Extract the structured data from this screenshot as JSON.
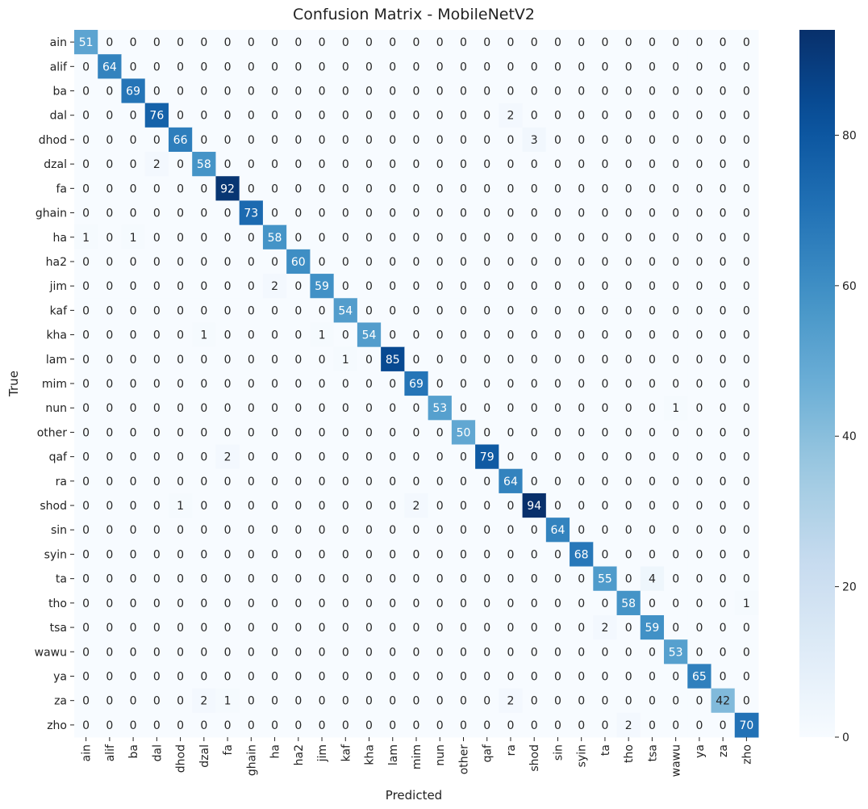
{
  "chart_data": {
    "type": "heatmap",
    "title": "Confusion Matrix - MobileNetV2",
    "xlabel": "Predicted",
    "ylabel": "True",
    "labels": [
      "ain",
      "alif",
      "ba",
      "dal",
      "dhod",
      "dzal",
      "fa",
      "ghain",
      "ha",
      "ha2",
      "jim",
      "kaf",
      "kha",
      "lam",
      "mim",
      "nun",
      "other",
      "qaf",
      "ra",
      "shod",
      "sin",
      "syin",
      "ta",
      "tho",
      "tsa",
      "wawu",
      "ya",
      "za",
      "zho"
    ],
    "matrix": [
      [
        51,
        0,
        0,
        0,
        0,
        0,
        0,
        0,
        0,
        0,
        0,
        0,
        0,
        0,
        0,
        0,
        0,
        0,
        0,
        0,
        0,
        0,
        0,
        0,
        0,
        0,
        0,
        0,
        0
      ],
      [
        0,
        64,
        0,
        0,
        0,
        0,
        0,
        0,
        0,
        0,
        0,
        0,
        0,
        0,
        0,
        0,
        0,
        0,
        0,
        0,
        0,
        0,
        0,
        0,
        0,
        0,
        0,
        0,
        0
      ],
      [
        0,
        0,
        69,
        0,
        0,
        0,
        0,
        0,
        0,
        0,
        0,
        0,
        0,
        0,
        0,
        0,
        0,
        0,
        0,
        0,
        0,
        0,
        0,
        0,
        0,
        0,
        0,
        0,
        0
      ],
      [
        0,
        0,
        0,
        76,
        0,
        0,
        0,
        0,
        0,
        0,
        0,
        0,
        0,
        0,
        0,
        0,
        0,
        0,
        2,
        0,
        0,
        0,
        0,
        0,
        0,
        0,
        0,
        0,
        0
      ],
      [
        0,
        0,
        0,
        0,
        66,
        0,
        0,
        0,
        0,
        0,
        0,
        0,
        0,
        0,
        0,
        0,
        0,
        0,
        0,
        3,
        0,
        0,
        0,
        0,
        0,
        0,
        0,
        0,
        0
      ],
      [
        0,
        0,
        0,
        2,
        0,
        58,
        0,
        0,
        0,
        0,
        0,
        0,
        0,
        0,
        0,
        0,
        0,
        0,
        0,
        0,
        0,
        0,
        0,
        0,
        0,
        0,
        0,
        0,
        0
      ],
      [
        0,
        0,
        0,
        0,
        0,
        0,
        92,
        0,
        0,
        0,
        0,
        0,
        0,
        0,
        0,
        0,
        0,
        0,
        0,
        0,
        0,
        0,
        0,
        0,
        0,
        0,
        0,
        0,
        0
      ],
      [
        0,
        0,
        0,
        0,
        0,
        0,
        0,
        73,
        0,
        0,
        0,
        0,
        0,
        0,
        0,
        0,
        0,
        0,
        0,
        0,
        0,
        0,
        0,
        0,
        0,
        0,
        0,
        0,
        0
      ],
      [
        1,
        0,
        1,
        0,
        0,
        0,
        0,
        0,
        58,
        0,
        0,
        0,
        0,
        0,
        0,
        0,
        0,
        0,
        0,
        0,
        0,
        0,
        0,
        0,
        0,
        0,
        0,
        0,
        0
      ],
      [
        0,
        0,
        0,
        0,
        0,
        0,
        0,
        0,
        0,
        60,
        0,
        0,
        0,
        0,
        0,
        0,
        0,
        0,
        0,
        0,
        0,
        0,
        0,
        0,
        0,
        0,
        0,
        0,
        0
      ],
      [
        0,
        0,
        0,
        0,
        0,
        0,
        0,
        0,
        2,
        0,
        59,
        0,
        0,
        0,
        0,
        0,
        0,
        0,
        0,
        0,
        0,
        0,
        0,
        0,
        0,
        0,
        0,
        0,
        0
      ],
      [
        0,
        0,
        0,
        0,
        0,
        0,
        0,
        0,
        0,
        0,
        0,
        54,
        0,
        0,
        0,
        0,
        0,
        0,
        0,
        0,
        0,
        0,
        0,
        0,
        0,
        0,
        0,
        0,
        0
      ],
      [
        0,
        0,
        0,
        0,
        0,
        1,
        0,
        0,
        0,
        0,
        1,
        0,
        54,
        0,
        0,
        0,
        0,
        0,
        0,
        0,
        0,
        0,
        0,
        0,
        0,
        0,
        0,
        0,
        0
      ],
      [
        0,
        0,
        0,
        0,
        0,
        0,
        0,
        0,
        0,
        0,
        0,
        1,
        0,
        85,
        0,
        0,
        0,
        0,
        0,
        0,
        0,
        0,
        0,
        0,
        0,
        0,
        0,
        0,
        0
      ],
      [
        0,
        0,
        0,
        0,
        0,
        0,
        0,
        0,
        0,
        0,
        0,
        0,
        0,
        0,
        69,
        0,
        0,
        0,
        0,
        0,
        0,
        0,
        0,
        0,
        0,
        0,
        0,
        0,
        0
      ],
      [
        0,
        0,
        0,
        0,
        0,
        0,
        0,
        0,
        0,
        0,
        0,
        0,
        0,
        0,
        0,
        53,
        0,
        0,
        0,
        0,
        0,
        0,
        0,
        0,
        0,
        1,
        0,
        0,
        0
      ],
      [
        0,
        0,
        0,
        0,
        0,
        0,
        0,
        0,
        0,
        0,
        0,
        0,
        0,
        0,
        0,
        0,
        50,
        0,
        0,
        0,
        0,
        0,
        0,
        0,
        0,
        0,
        0,
        0,
        0
      ],
      [
        0,
        0,
        0,
        0,
        0,
        0,
        2,
        0,
        0,
        0,
        0,
        0,
        0,
        0,
        0,
        0,
        0,
        79,
        0,
        0,
        0,
        0,
        0,
        0,
        0,
        0,
        0,
        0,
        0
      ],
      [
        0,
        0,
        0,
        0,
        0,
        0,
        0,
        0,
        0,
        0,
        0,
        0,
        0,
        0,
        0,
        0,
        0,
        0,
        64,
        0,
        0,
        0,
        0,
        0,
        0,
        0,
        0,
        0,
        0
      ],
      [
        0,
        0,
        0,
        0,
        1,
        0,
        0,
        0,
        0,
        0,
        0,
        0,
        0,
        0,
        2,
        0,
        0,
        0,
        0,
        94,
        0,
        0,
        0,
        0,
        0,
        0,
        0,
        0,
        0
      ],
      [
        0,
        0,
        0,
        0,
        0,
        0,
        0,
        0,
        0,
        0,
        0,
        0,
        0,
        0,
        0,
        0,
        0,
        0,
        0,
        0,
        64,
        0,
        0,
        0,
        0,
        0,
        0,
        0,
        0
      ],
      [
        0,
        0,
        0,
        0,
        0,
        0,
        0,
        0,
        0,
        0,
        0,
        0,
        0,
        0,
        0,
        0,
        0,
        0,
        0,
        0,
        0,
        68,
        0,
        0,
        0,
        0,
        0,
        0,
        0
      ],
      [
        0,
        0,
        0,
        0,
        0,
        0,
        0,
        0,
        0,
        0,
        0,
        0,
        0,
        0,
        0,
        0,
        0,
        0,
        0,
        0,
        0,
        0,
        55,
        0,
        4,
        0,
        0,
        0,
        0
      ],
      [
        0,
        0,
        0,
        0,
        0,
        0,
        0,
        0,
        0,
        0,
        0,
        0,
        0,
        0,
        0,
        0,
        0,
        0,
        0,
        0,
        0,
        0,
        0,
        58,
        0,
        0,
        0,
        0,
        1
      ],
      [
        0,
        0,
        0,
        0,
        0,
        0,
        0,
        0,
        0,
        0,
        0,
        0,
        0,
        0,
        0,
        0,
        0,
        0,
        0,
        0,
        0,
        0,
        2,
        0,
        59,
        0,
        0,
        0,
        0
      ],
      [
        0,
        0,
        0,
        0,
        0,
        0,
        0,
        0,
        0,
        0,
        0,
        0,
        0,
        0,
        0,
        0,
        0,
        0,
        0,
        0,
        0,
        0,
        0,
        0,
        0,
        53,
        0,
        0,
        0
      ],
      [
        0,
        0,
        0,
        0,
        0,
        0,
        0,
        0,
        0,
        0,
        0,
        0,
        0,
        0,
        0,
        0,
        0,
        0,
        0,
        0,
        0,
        0,
        0,
        0,
        0,
        0,
        65,
        0,
        0
      ],
      [
        0,
        0,
        0,
        0,
        0,
        2,
        1,
        0,
        0,
        0,
        0,
        0,
        0,
        0,
        0,
        0,
        0,
        0,
        2,
        0,
        0,
        0,
        0,
        0,
        0,
        0,
        0,
        42,
        0
      ],
      [
        0,
        0,
        0,
        0,
        0,
        0,
        0,
        0,
        0,
        0,
        0,
        0,
        0,
        0,
        0,
        0,
        0,
        0,
        0,
        0,
        0,
        0,
        0,
        2,
        0,
        0,
        0,
        0,
        70
      ]
    ],
    "colorbar": {
      "colormap": "Blues",
      "range": [
        0,
        94
      ],
      "ticks": [
        0,
        20,
        40,
        60,
        80
      ]
    },
    "grid": false,
    "legend": "none"
  }
}
